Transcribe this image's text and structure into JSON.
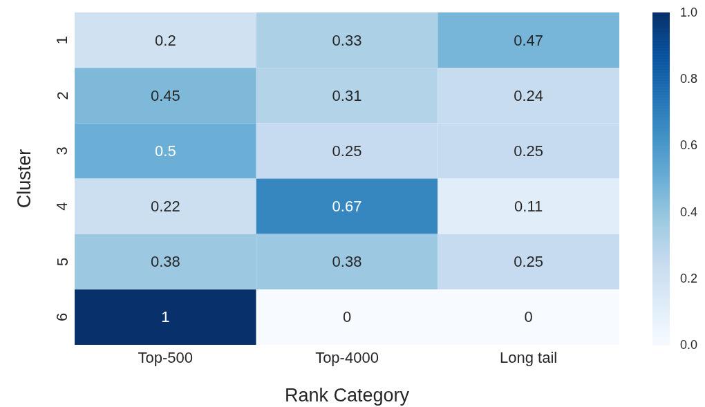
{
  "chart_data": {
    "type": "heatmap",
    "xlabel": "Rank Category",
    "ylabel": "Cluster",
    "categories": [
      "Top-500",
      "Top-4000",
      "Long tail"
    ],
    "y_categories": [
      "1",
      "2",
      "3",
      "4",
      "5",
      "6"
    ],
    "cells": [
      [
        0.2,
        0.33,
        0.47
      ],
      [
        0.45,
        0.31,
        0.24
      ],
      [
        0.5,
        0.25,
        0.25
      ],
      [
        0.22,
        0.67,
        0.11
      ],
      [
        0.38,
        0.38,
        0.25
      ],
      [
        1,
        0,
        0
      ]
    ],
    "clim": [
      0,
      1
    ],
    "cticks": [
      {
        "value": 0,
        "label": "0.0"
      },
      0.2,
      0.4,
      0.6,
      0.8,
      {
        "value": 1,
        "label": "1.0"
      }
    ],
    "data_labels": true
  }
}
